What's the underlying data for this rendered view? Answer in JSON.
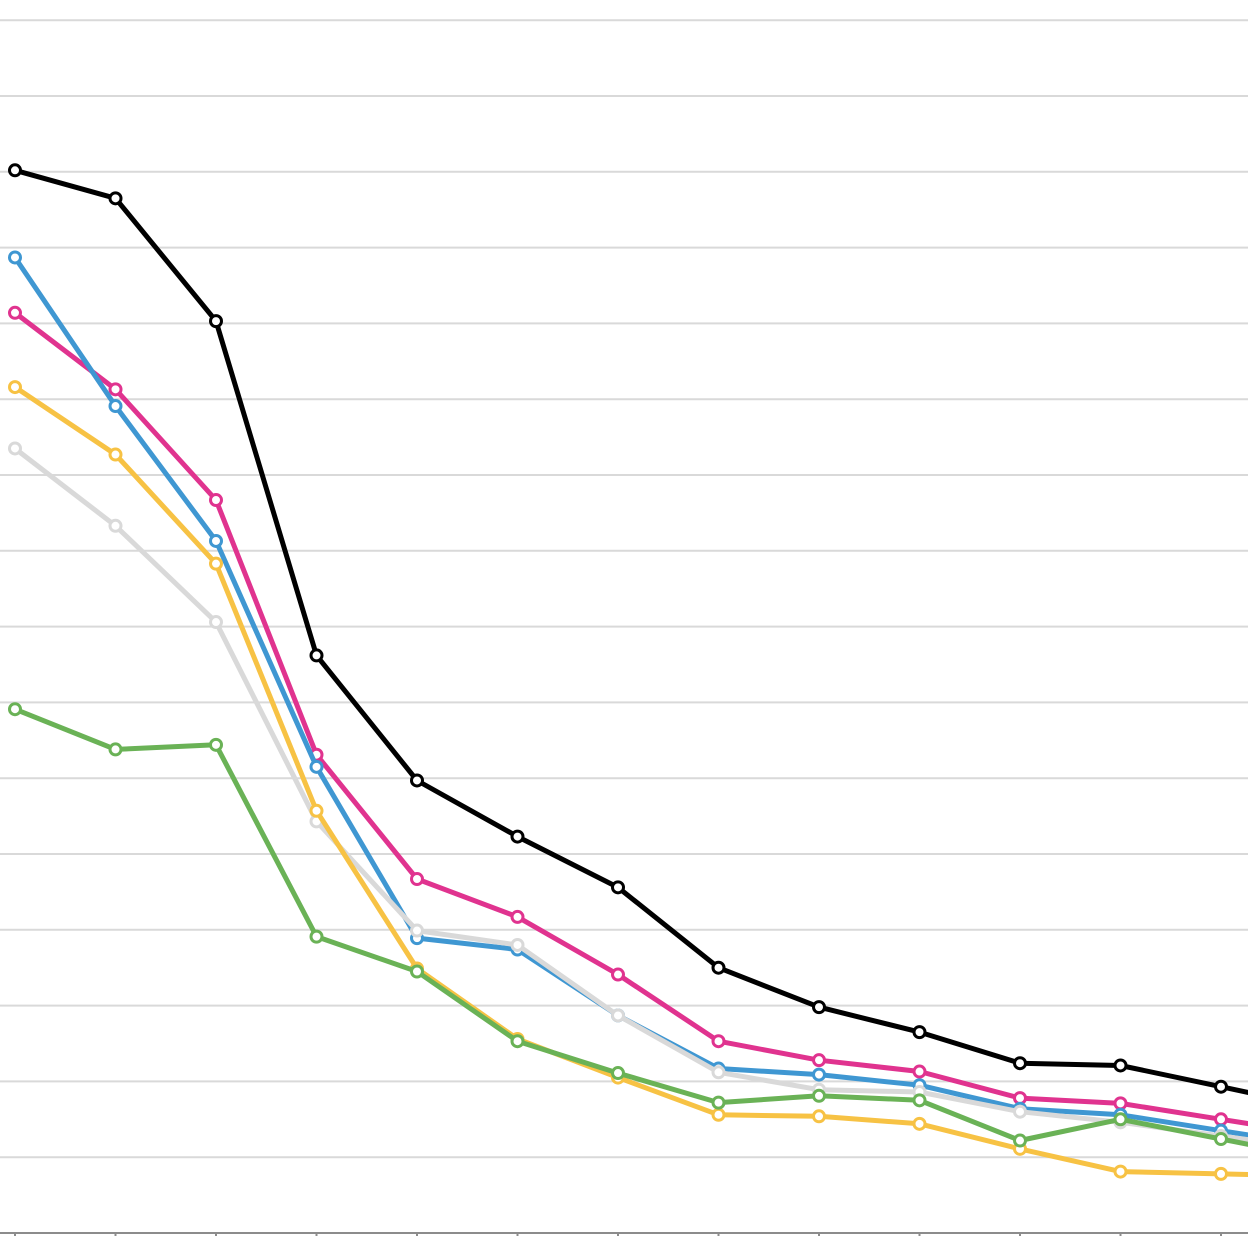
{
  "chart_data": {
    "type": "line",
    "x": [
      1,
      2,
      3,
      4,
      5,
      6,
      7,
      8,
      9,
      10,
      11,
      12,
      13
    ],
    "xlim": [
      1,
      13.26
    ],
    "ylim": [
      0,
      16
    ],
    "y_gridlines": [
      1,
      2,
      3,
      4,
      5,
      6,
      7,
      8,
      9,
      10,
      11,
      12,
      13,
      14,
      15,
      16
    ],
    "grid": true,
    "legend": "none",
    "series": [
      {
        "color": "#000000",
        "values": [
          14.02,
          13.65,
          12.03,
          7.62,
          5.97,
          5.23,
          4.56,
          3.5,
          2.98,
          2.65,
          2.24,
          2.21,
          1.93
        ]
      },
      {
        "color": "#e0338f",
        "values": [
          12.14,
          11.13,
          9.67,
          6.31,
          4.67,
          4.17,
          3.41,
          2.53,
          2.28,
          2.13,
          1.78,
          1.71,
          1.5
        ]
      },
      {
        "color": "#3f97d2",
        "values": [
          12.87,
          10.91,
          9.13,
          6.15,
          3.89,
          3.74,
          2.87,
          2.17,
          2.09,
          1.95,
          1.64,
          1.56,
          1.35
        ]
      },
      {
        "color": "#d9d9d9",
        "values": [
          10.35,
          9.33,
          8.06,
          5.43,
          3.99,
          3.8,
          2.87,
          2.12,
          1.89,
          1.86,
          1.6,
          1.46,
          1.28
        ]
      },
      {
        "color": "#f7c244",
        "values": [
          11.16,
          10.27,
          8.83,
          5.57,
          3.49,
          2.56,
          2.05,
          1.56,
          1.54,
          1.44,
          1.11,
          0.81,
          0.78
        ]
      },
      {
        "color": "#6ab256",
        "values": [
          6.91,
          6.38,
          6.44,
          3.91,
          3.45,
          2.53,
          2.11,
          1.72,
          1.81,
          1.75,
          1.22,
          1.5,
          1.24
        ]
      }
    ]
  }
}
